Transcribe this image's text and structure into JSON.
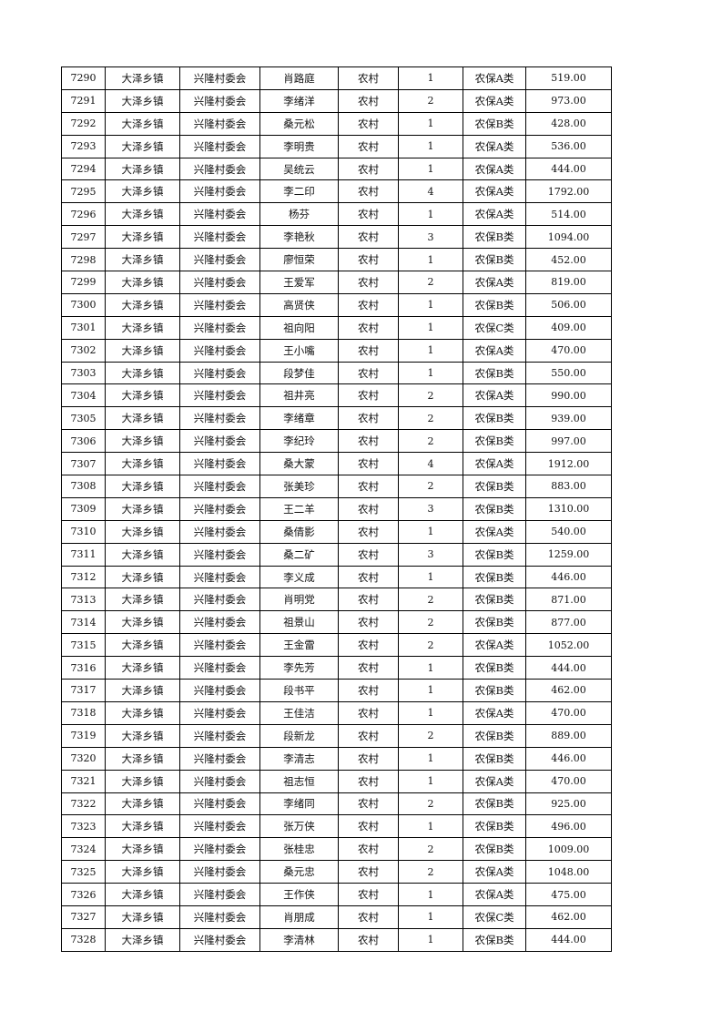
{
  "rows": [
    [
      "7290",
      "大泽乡镇",
      "兴隆村委会",
      "肖路庭",
      "农村",
      "1",
      "农保A类",
      "519.00"
    ],
    [
      "7291",
      "大泽乡镇",
      "兴隆村委会",
      "李绪洋",
      "农村",
      "2",
      "农保A类",
      "973.00"
    ],
    [
      "7292",
      "大泽乡镇",
      "兴隆村委会",
      "桑元松",
      "农村",
      "1",
      "农保B类",
      "428.00"
    ],
    [
      "7293",
      "大泽乡镇",
      "兴隆村委会",
      "李明贵",
      "农村",
      "1",
      "农保A类",
      "536.00"
    ],
    [
      "7294",
      "大泽乡镇",
      "兴隆村委会",
      "吴统云",
      "农村",
      "1",
      "农保A类",
      "444.00"
    ],
    [
      "7295",
      "大泽乡镇",
      "兴隆村委会",
      "李二印",
      "农村",
      "4",
      "农保A类",
      "1792.00"
    ],
    [
      "7296",
      "大泽乡镇",
      "兴隆村委会",
      "杨芬",
      "农村",
      "1",
      "农保A类",
      "514.00"
    ],
    [
      "7297",
      "大泽乡镇",
      "兴隆村委会",
      "李艳秋",
      "农村",
      "3",
      "农保B类",
      "1094.00"
    ],
    [
      "7298",
      "大泽乡镇",
      "兴隆村委会",
      "廖恒荣",
      "农村",
      "1",
      "农保B类",
      "452.00"
    ],
    [
      "7299",
      "大泽乡镇",
      "兴隆村委会",
      "王爱军",
      "农村",
      "2",
      "农保A类",
      "819.00"
    ],
    [
      "7300",
      "大泽乡镇",
      "兴隆村委会",
      "高贤侠",
      "农村",
      "1",
      "农保B类",
      "506.00"
    ],
    [
      "7301",
      "大泽乡镇",
      "兴隆村委会",
      "祖向阳",
      "农村",
      "1",
      "农保C类",
      "409.00"
    ],
    [
      "7302",
      "大泽乡镇",
      "兴隆村委会",
      "王小嘴",
      "农村",
      "1",
      "农保A类",
      "470.00"
    ],
    [
      "7303",
      "大泽乡镇",
      "兴隆村委会",
      "段梦佳",
      "农村",
      "1",
      "农保B类",
      "550.00"
    ],
    [
      "7304",
      "大泽乡镇",
      "兴隆村委会",
      "祖井亮",
      "农村",
      "2",
      "农保A类",
      "990.00"
    ],
    [
      "7305",
      "大泽乡镇",
      "兴隆村委会",
      "李绪章",
      "农村",
      "2",
      "农保B类",
      "939.00"
    ],
    [
      "7306",
      "大泽乡镇",
      "兴隆村委会",
      "李纪玲",
      "农村",
      "2",
      "农保B类",
      "997.00"
    ],
    [
      "7307",
      "大泽乡镇",
      "兴隆村委会",
      "桑大蒙",
      "农村",
      "4",
      "农保A类",
      "1912.00"
    ],
    [
      "7308",
      "大泽乡镇",
      "兴隆村委会",
      "张美珍",
      "农村",
      "2",
      "农保B类",
      "883.00"
    ],
    [
      "7309",
      "大泽乡镇",
      "兴隆村委会",
      "王二羊",
      "农村",
      "3",
      "农保B类",
      "1310.00"
    ],
    [
      "7310",
      "大泽乡镇",
      "兴隆村委会",
      "桑倩影",
      "农村",
      "1",
      "农保A类",
      "540.00"
    ],
    [
      "7311",
      "大泽乡镇",
      "兴隆村委会",
      "桑二矿",
      "农村",
      "3",
      "农保B类",
      "1259.00"
    ],
    [
      "7312",
      "大泽乡镇",
      "兴隆村委会",
      "李义成",
      "农村",
      "1",
      "农保B类",
      "446.00"
    ],
    [
      "7313",
      "大泽乡镇",
      "兴隆村委会",
      "肖明党",
      "农村",
      "2",
      "农保B类",
      "871.00"
    ],
    [
      "7314",
      "大泽乡镇",
      "兴隆村委会",
      "祖景山",
      "农村",
      "2",
      "农保B类",
      "877.00"
    ],
    [
      "7315",
      "大泽乡镇",
      "兴隆村委会",
      "王金雷",
      "农村",
      "2",
      "农保A类",
      "1052.00"
    ],
    [
      "7316",
      "大泽乡镇",
      "兴隆村委会",
      "李先芳",
      "农村",
      "1",
      "农保B类",
      "444.00"
    ],
    [
      "7317",
      "大泽乡镇",
      "兴隆村委会",
      "段书平",
      "农村",
      "1",
      "农保B类",
      "462.00"
    ],
    [
      "7318",
      "大泽乡镇",
      "兴隆村委会",
      "王佳洁",
      "农村",
      "1",
      "农保A类",
      "470.00"
    ],
    [
      "7319",
      "大泽乡镇",
      "兴隆村委会",
      "段新龙",
      "农村",
      "2",
      "农保B类",
      "889.00"
    ],
    [
      "7320",
      "大泽乡镇",
      "兴隆村委会",
      "李清志",
      "农村",
      "1",
      "农保B类",
      "446.00"
    ],
    [
      "7321",
      "大泽乡镇",
      "兴隆村委会",
      "祖志恒",
      "农村",
      "1",
      "农保A类",
      "470.00"
    ],
    [
      "7322",
      "大泽乡镇",
      "兴隆村委会",
      "李绪同",
      "农村",
      "2",
      "农保B类",
      "925.00"
    ],
    [
      "7323",
      "大泽乡镇",
      "兴隆村委会",
      "张万侠",
      "农村",
      "1",
      "农保B类",
      "496.00"
    ],
    [
      "7324",
      "大泽乡镇",
      "兴隆村委会",
      "张桂忠",
      "农村",
      "2",
      "农保B类",
      "1009.00"
    ],
    [
      "7325",
      "大泽乡镇",
      "兴隆村委会",
      "桑元忠",
      "农村",
      "2",
      "农保A类",
      "1048.00"
    ],
    [
      "7326",
      "大泽乡镇",
      "兴隆村委会",
      "王作侠",
      "农村",
      "1",
      "农保A类",
      "475.00"
    ],
    [
      "7327",
      "大泽乡镇",
      "兴隆村委会",
      "肖朋成",
      "农村",
      "1",
      "农保C类",
      "462.00"
    ],
    [
      "7328",
      "大泽乡镇",
      "兴隆村委会",
      "李清林",
      "农村",
      "1",
      "农保B类",
      "444.00"
    ]
  ]
}
